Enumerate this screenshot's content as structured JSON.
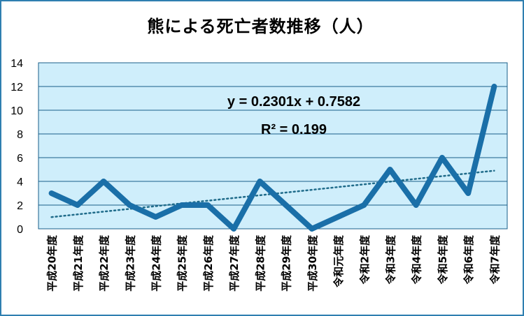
{
  "chart_data": {
    "type": "line",
    "title": "熊による死亡者数推移（人）",
    "categories": [
      "平成20年度",
      "平成21年度",
      "平成22年度",
      "平成23年度",
      "平成24年度",
      "平成25年度",
      "平成26年度",
      "平成27年度",
      "平成28年度",
      "平成29年度",
      "平成30年度",
      "令和元年度",
      "令和2年度",
      "令和3年度",
      "令和4年度",
      "令和5年度",
      "令和6年度",
      "令和7年度"
    ],
    "series": [
      {
        "values": [
          3,
          2,
          4,
          2,
          1,
          2,
          2,
          0,
          4,
          2,
          0,
          1,
          2,
          5,
          2,
          6,
          3,
          12
        ]
      }
    ],
    "trendline": {
      "type": "linear",
      "slope": 0.2301,
      "intercept": 0.7582,
      "equation_label": "y = 0.2301x + 0.7582",
      "r2_label": "R² = 0.199"
    },
    "ylim": [
      0,
      14
    ],
    "yticks": [
      0,
      2,
      4,
      6,
      8,
      10,
      12,
      14
    ],
    "xlabel": "",
    "ylabel": "",
    "grid": true,
    "legend": "none"
  },
  "colors": {
    "plot_background": "#cfeefb",
    "line": "#1a6fa8",
    "trendline": "#1f6b8a",
    "gridline": "#1a5f8a",
    "frame": "#2f7fb0"
  }
}
